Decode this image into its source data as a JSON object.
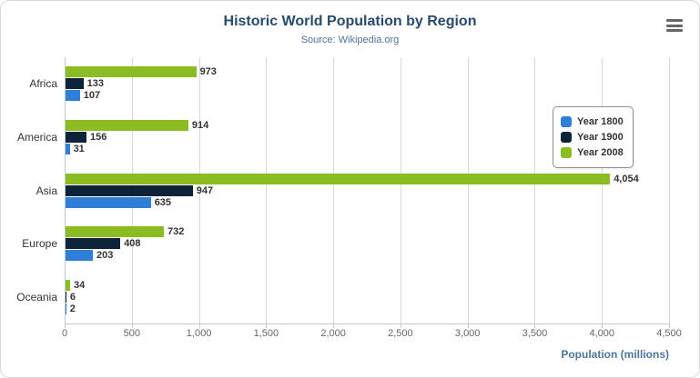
{
  "header": {
    "title": "Historic World Population by Region",
    "subtitle": "Source: Wikipedia.org"
  },
  "chart_data": {
    "type": "bar",
    "orientation": "horizontal",
    "categories": [
      "Africa",
      "America",
      "Asia",
      "Europe",
      "Oceania"
    ],
    "series": [
      {
        "name": "Year 1800",
        "color": "#2f7ed8",
        "values": [
          107,
          31,
          635,
          203,
          2
        ]
      },
      {
        "name": "Year 1900",
        "color": "#0d233a",
        "values": [
          133,
          156,
          947,
          408,
          6
        ]
      },
      {
        "name": "Year 2008",
        "color": "#8bbc21",
        "values": [
          973,
          914,
          4054,
          732,
          34
        ]
      }
    ],
    "title": "Historic World Population by Region",
    "subtitle": "Source: Wikipedia.org",
    "xlabel": "Population (millions)",
    "ylabel": "",
    "xlim": [
      0,
      4500
    ],
    "xticks": [
      0,
      500,
      1000,
      1500,
      2000,
      2500,
      3000,
      3500,
      4000,
      4500
    ],
    "grid": true,
    "legend_position": "right",
    "data_labels": true
  },
  "colors": {
    "title": "#274b6d",
    "subtitle": "#4d759e",
    "axis_title": "#4d759e",
    "grid": "#d8d8d8",
    "value_label": "#333333"
  }
}
